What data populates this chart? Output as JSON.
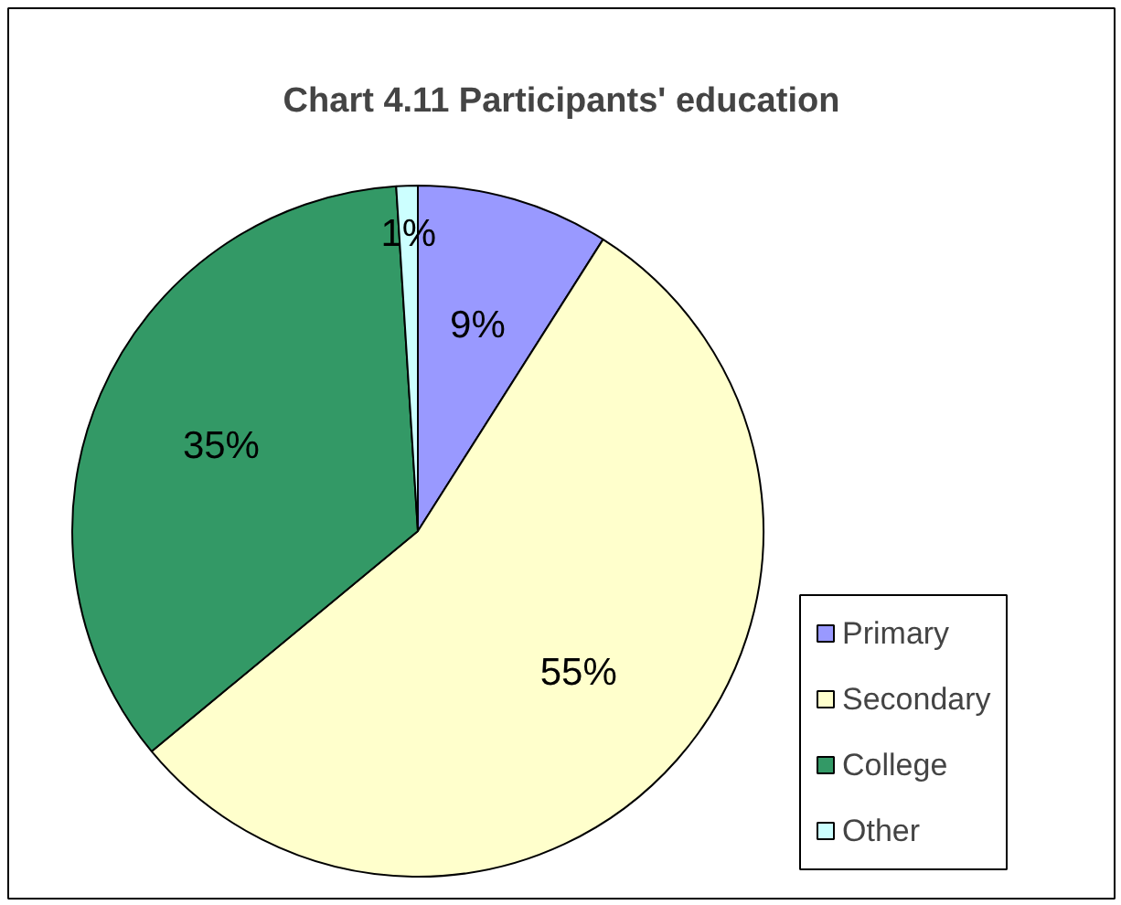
{
  "chart_data": {
    "type": "pie",
    "title": "Chart 4.11 Participants' education",
    "categories": [
      "Primary",
      "Secondary",
      "College",
      "Other"
    ],
    "values": [
      9,
      55,
      35,
      1
    ],
    "colors": [
      "#9999ff",
      "#ffffcc",
      "#339966",
      "#ccffff"
    ],
    "value_labels": [
      "9%",
      "55%",
      "35%",
      "1%"
    ],
    "legend": "bottom right"
  }
}
